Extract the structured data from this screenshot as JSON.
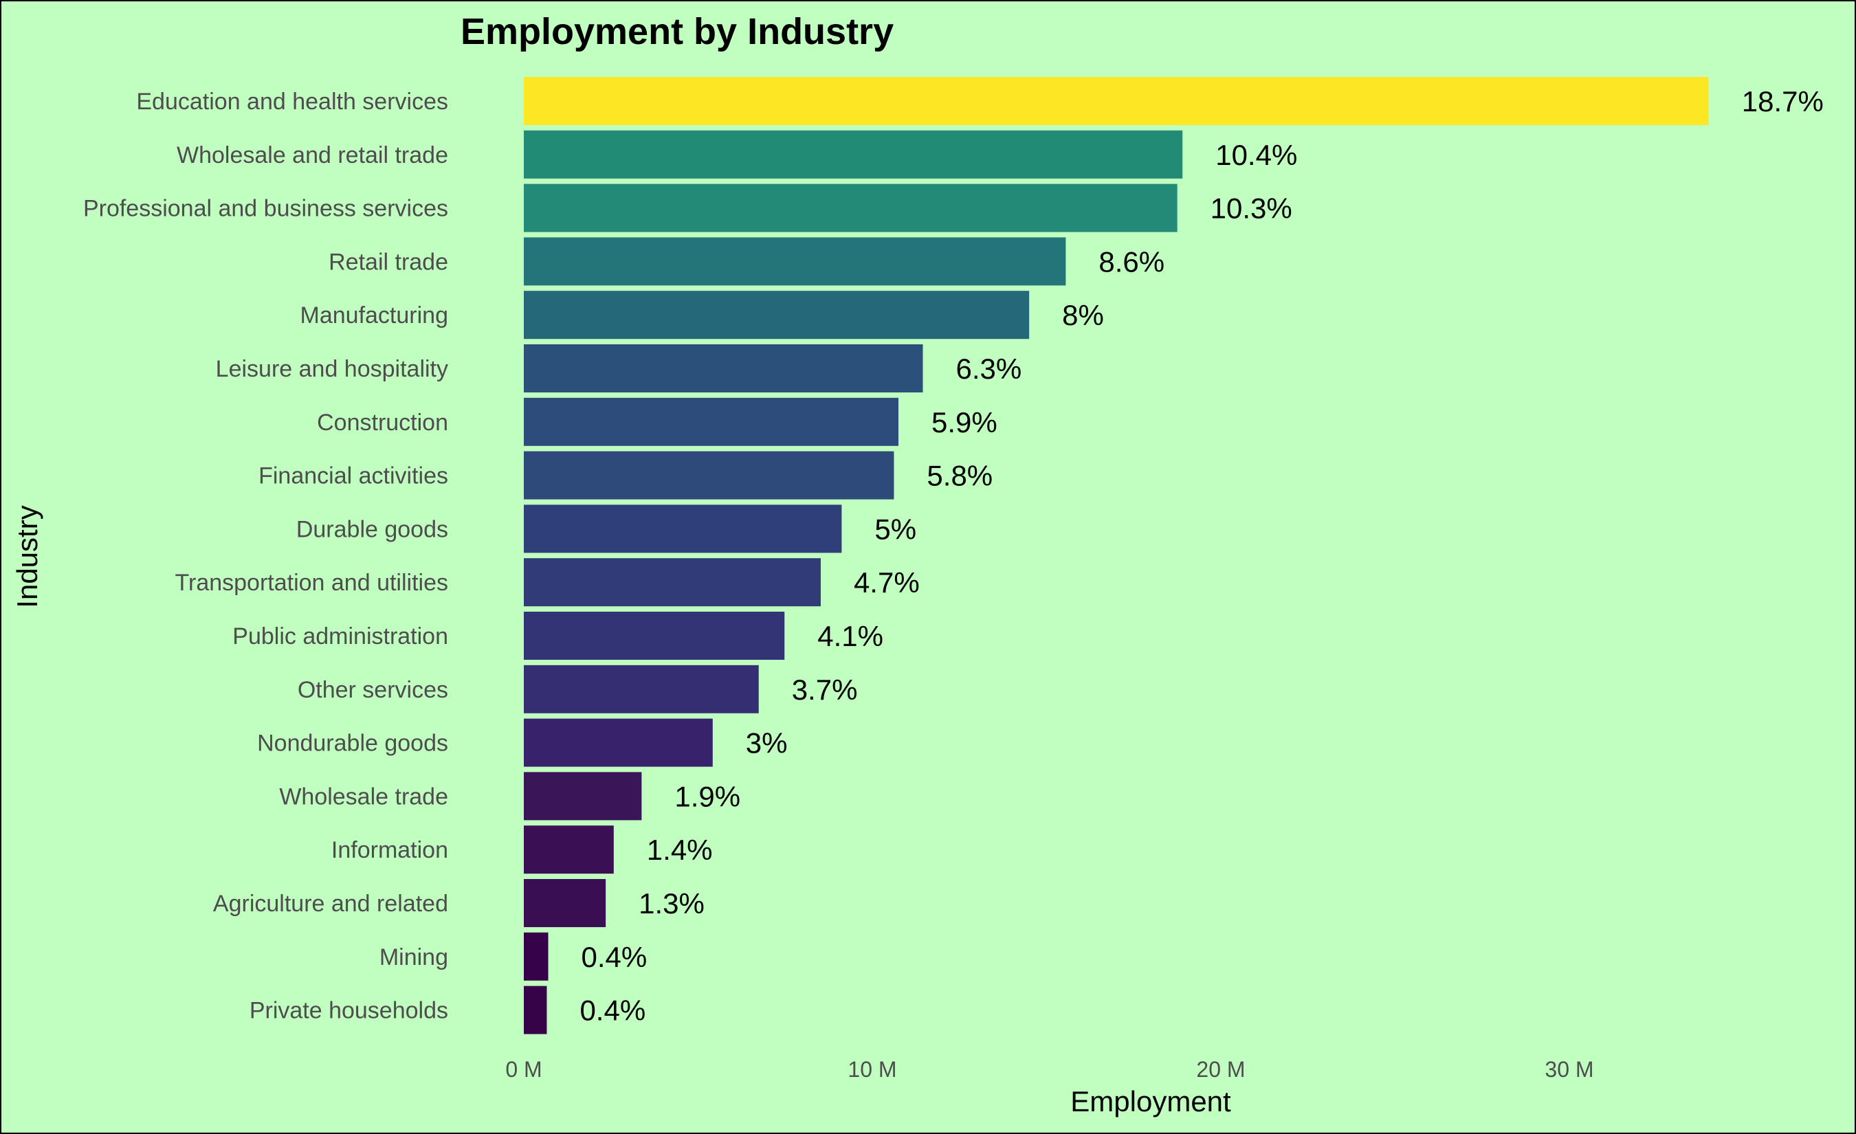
{
  "chart_data": {
    "type": "bar",
    "orientation": "horizontal",
    "title": "Employment by Industry",
    "xlabel": "Employment",
    "ylabel": "Industry",
    "xlim": [
      0,
      37000000
    ],
    "x_ticks": [
      0,
      10000000,
      20000000,
      30000000
    ],
    "x_tick_labels": [
      "0 M",
      "10 M",
      "20 M",
      "30 M"
    ],
    "grid": false,
    "legend": "none",
    "color_scale": "viridis",
    "categories": [
      "Education and health services",
      "Wholesale and retail trade",
      "Professional and business services",
      "Retail trade",
      "Manufacturing",
      "Leisure and hospitality",
      "Construction",
      "Financial activities",
      "Durable goods",
      "Transportation and utilities",
      "Public administration",
      "Other services",
      "Nondurable goods",
      "Wholesale trade",
      "Information",
      "Agriculture and related",
      "Mining",
      "Private households"
    ],
    "values": [
      34000000,
      18900000,
      18750000,
      15550000,
      14500000,
      11450000,
      10750000,
      10620000,
      9120000,
      8520000,
      7480000,
      6740000,
      5420000,
      3380000,
      2580000,
      2350000,
      700000,
      660000
    ],
    "labels": [
      "18.7%",
      "10.4%",
      "10.3%",
      "8.6%",
      "8%",
      "6.3%",
      "5.9%",
      "5.8%",
      "5%",
      "4.7%",
      "4.1%",
      "3.7%",
      "3%",
      "1.9%",
      "1.4%",
      "1.3%",
      "0.4%",
      "0.4%"
    ],
    "colors": [
      "#fde725",
      "#228b76",
      "#228a77",
      "#247579",
      "#25687a",
      "#2b517b",
      "#2d4c7b",
      "#2e4a7b",
      "#2f3f79",
      "#313b78",
      "#333476",
      "#352e73",
      "#38226c",
      "#3a1558",
      "#3a0f54",
      "#3a0e52",
      "#36034a",
      "#360349"
    ]
  }
}
